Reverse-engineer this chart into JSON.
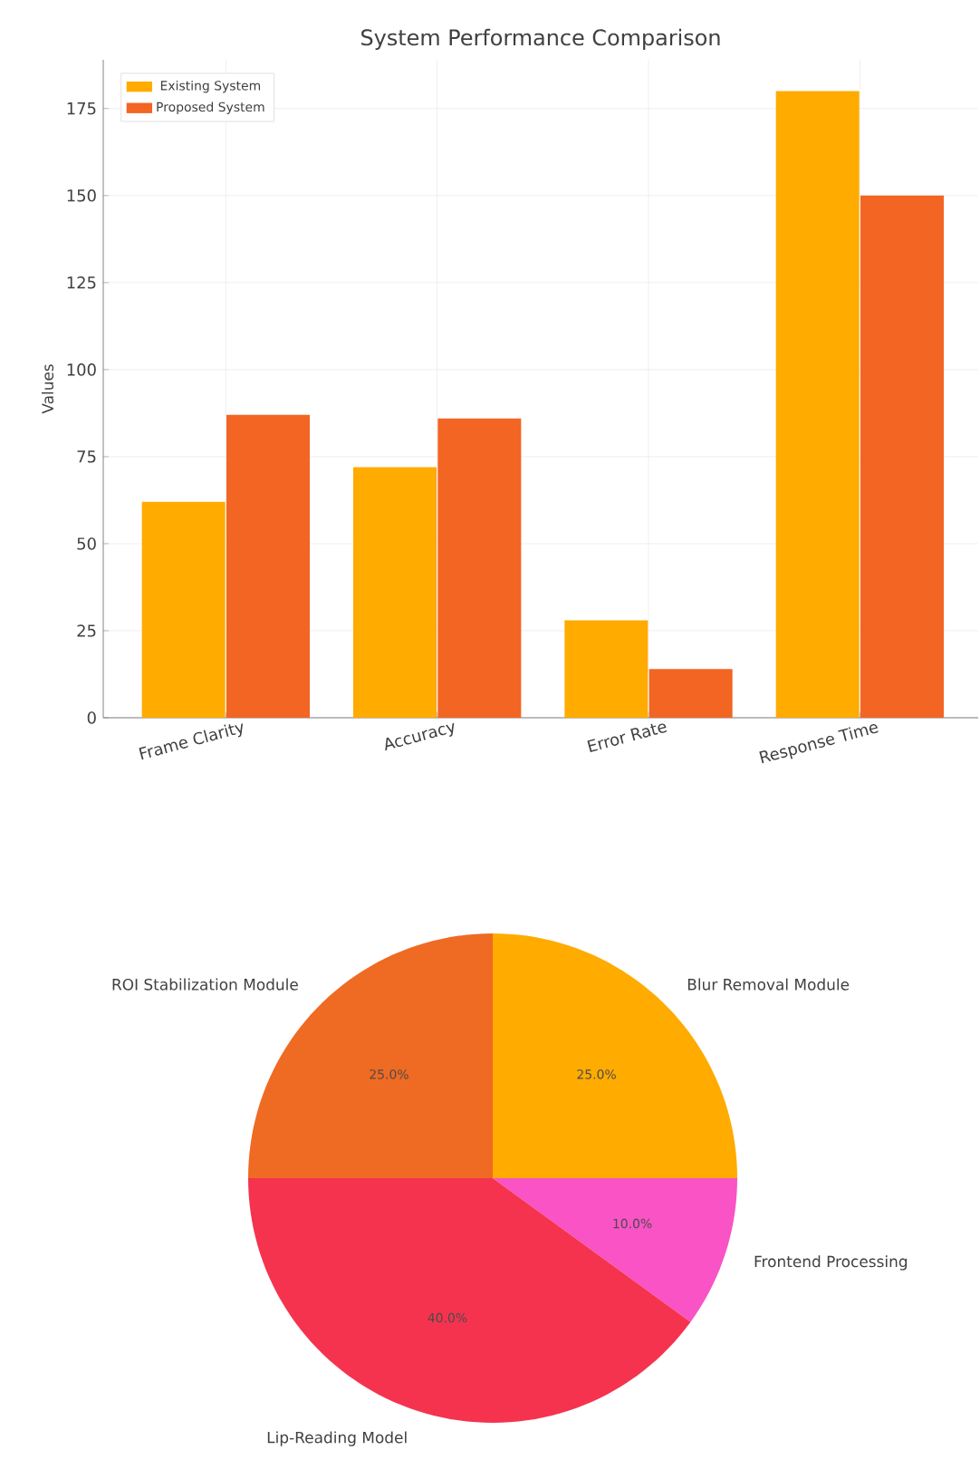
{
  "chart_data": [
    {
      "type": "bar",
      "title": "System Performance Comparison",
      "ylabel": "Values",
      "categories": [
        "Frame Clarity",
        "Accuracy",
        "Error Rate",
        "Response Time"
      ],
      "series": [
        {
          "name": "Existing System",
          "color": "#ffab00",
          "values": [
            62,
            72,
            28,
            180
          ]
        },
        {
          "name": "Proposed System",
          "color": "#f26522",
          "values": [
            87,
            86,
            14,
            150
          ]
        }
      ],
      "ylim": [
        0,
        189
      ],
      "yticks": [
        0,
        25,
        50,
        75,
        100,
        125,
        150,
        175
      ],
      "grid": true,
      "legend": "top left"
    },
    {
      "type": "pie",
      "categories": [
        "Blur Removal Module",
        "Frontend Processing",
        "Lip-Reading Model",
        "ROI Stabilization Module"
      ],
      "values": [
        25,
        10,
        40,
        25
      ],
      "colors": [
        "#ffab00",
        "#f953c5",
        "#f5334f",
        "#ef6a22"
      ],
      "value_labels": [
        "25.0%",
        "10.0%",
        "40.0%",
        "25.0%"
      ]
    }
  ]
}
